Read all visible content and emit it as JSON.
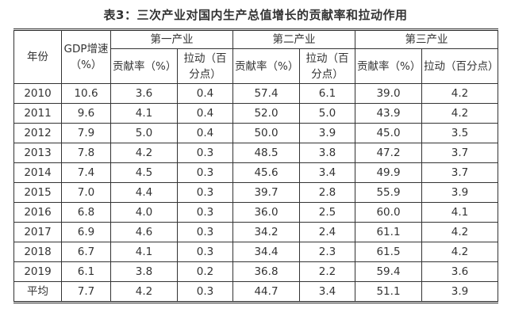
{
  "title": "表3：三次产业对国内生产总值增长的贡献率和拉动作用",
  "header": {
    "year": "年份",
    "gdp_growth": "GDP增速（%）",
    "primary": "第一产业",
    "secondary": "第二产业",
    "tertiary": "第三产业",
    "contribution_rate": "贡献率（%）",
    "pull": "拉动（百分点）"
  },
  "rows": [
    {
      "year": "2010",
      "gdp": "10.6",
      "p_rate": "3.6",
      "p_pull": "0.4",
      "s_rate": "57.4",
      "s_pull": "6.1",
      "t_rate": "39.0",
      "t_pull": "4.2"
    },
    {
      "year": "2011",
      "gdp": "9.6",
      "p_rate": "4.1",
      "p_pull": "0.4",
      "s_rate": "52.0",
      "s_pull": "5.0",
      "t_rate": "43.9",
      "t_pull": "4.2"
    },
    {
      "year": "2012",
      "gdp": "7.9",
      "p_rate": "5.0",
      "p_pull": "0.4",
      "s_rate": "50.0",
      "s_pull": "3.9",
      "t_rate": "45.0",
      "t_pull": "3.5"
    },
    {
      "year": "2013",
      "gdp": "7.8",
      "p_rate": "4.2",
      "p_pull": "0.3",
      "s_rate": "48.5",
      "s_pull": "3.8",
      "t_rate": "47.2",
      "t_pull": "3.7"
    },
    {
      "year": "2014",
      "gdp": "7.4",
      "p_rate": "4.5",
      "p_pull": "0.3",
      "s_rate": "45.6",
      "s_pull": "3.4",
      "t_rate": "49.9",
      "t_pull": "3.7"
    },
    {
      "year": "2015",
      "gdp": "7.0",
      "p_rate": "4.4",
      "p_pull": "0.3",
      "s_rate": "39.7",
      "s_pull": "2.8",
      "t_rate": "55.9",
      "t_pull": "3.9"
    },
    {
      "year": "2016",
      "gdp": "6.8",
      "p_rate": "4.0",
      "p_pull": "0.3",
      "s_rate": "36.0",
      "s_pull": "2.5",
      "t_rate": "60.0",
      "t_pull": "4.1"
    },
    {
      "year": "2017",
      "gdp": "6.9",
      "p_rate": "4.6",
      "p_pull": "0.3",
      "s_rate": "34.2",
      "s_pull": "2.4",
      "t_rate": "61.1",
      "t_pull": "4.2"
    },
    {
      "year": "2018",
      "gdp": "6.7",
      "p_rate": "4.1",
      "p_pull": "0.3",
      "s_rate": "34.4",
      "s_pull": "2.3",
      "t_rate": "61.5",
      "t_pull": "4.2"
    },
    {
      "year": "2019",
      "gdp": "6.1",
      "p_rate": "3.8",
      "p_pull": "0.2",
      "s_rate": "36.8",
      "s_pull": "2.2",
      "t_rate": "59.4",
      "t_pull": "3.6"
    },
    {
      "year": "平均",
      "gdp": "7.7",
      "p_rate": "4.2",
      "p_pull": "0.3",
      "s_rate": "44.7",
      "s_pull": "3.4",
      "t_rate": "51.1",
      "t_pull": "3.9"
    }
  ]
}
